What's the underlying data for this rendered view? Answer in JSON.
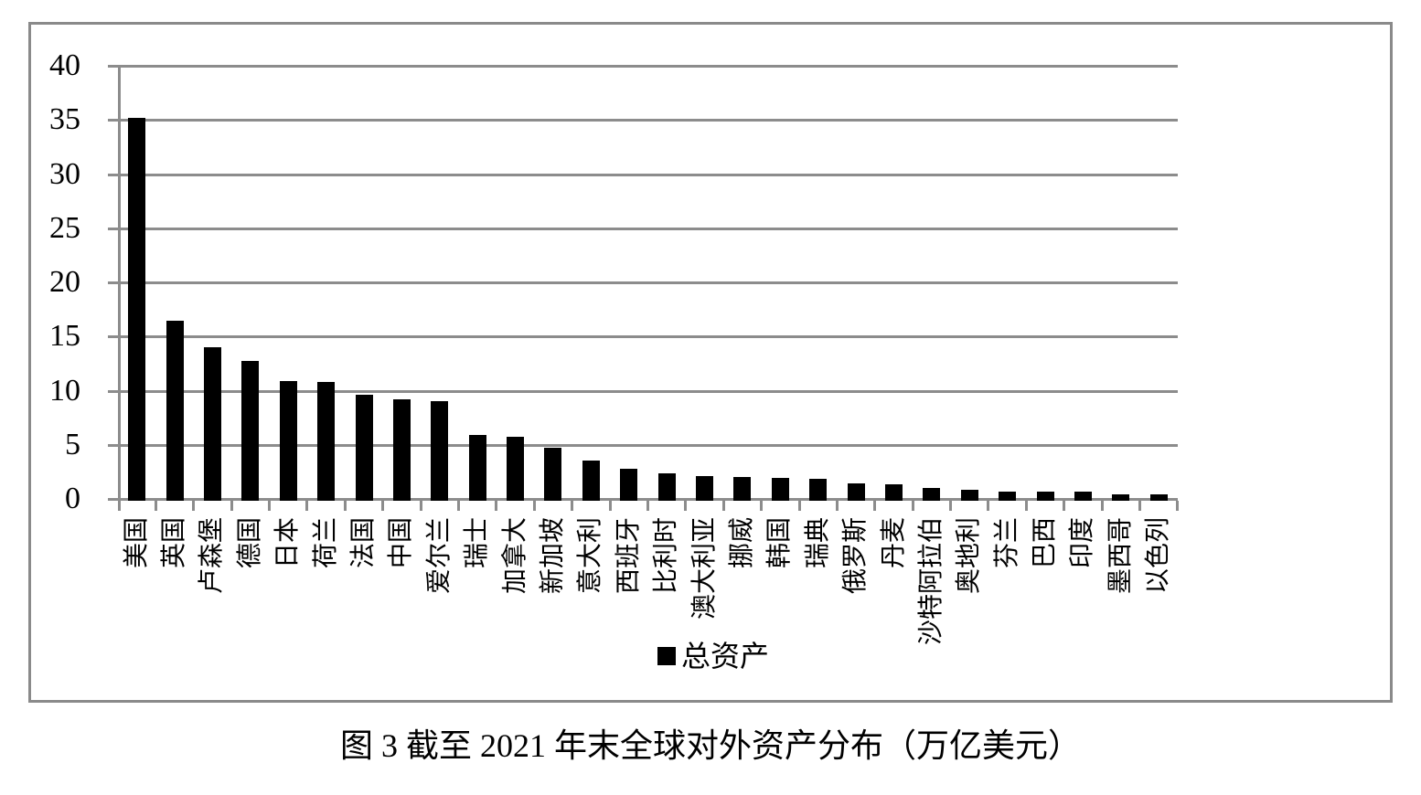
{
  "figure": {
    "caption": "图 3  截至 2021 年末全球对外资产分布（万亿美元）"
  },
  "chart_data": {
    "type": "bar",
    "title": "图 3  截至 2021 年末全球对外资产分布（万亿美元）",
    "xlabel": "",
    "ylabel": "",
    "unit": "万亿美元",
    "ylim": [
      0,
      40
    ],
    "yticks": [
      0,
      5,
      10,
      15,
      20,
      25,
      30,
      35,
      40
    ],
    "grid": true,
    "legend_position": "bottom-center",
    "bar_color": "#000000",
    "grid_color": "#8c8c8c",
    "categories": [
      "美国",
      "英国",
      "卢森堡",
      "德国",
      "日本",
      "荷兰",
      "法国",
      "中国",
      "爱尔兰",
      "瑞士",
      "加拿大",
      "新加坡",
      "意大利",
      "西班牙",
      "比利时",
      "澳大利亚",
      "挪威",
      "韩国",
      "瑞典",
      "俄罗斯",
      "丹麦",
      "沙特阿拉伯",
      "奥地利",
      "芬兰",
      "巴西",
      "印度",
      "墨西哥",
      "以色列"
    ],
    "series": [
      {
        "name": "总资产",
        "values": [
          35.1,
          16.5,
          14.1,
          12.8,
          11.0,
          10.9,
          9.7,
          9.3,
          9.1,
          6.0,
          5.9,
          4.9,
          3.7,
          2.9,
          2.5,
          2.3,
          2.2,
          2.1,
          2.0,
          1.6,
          1.5,
          1.2,
          1.0,
          0.8,
          0.8,
          0.8,
          0.6,
          0.55
        ]
      }
    ]
  }
}
